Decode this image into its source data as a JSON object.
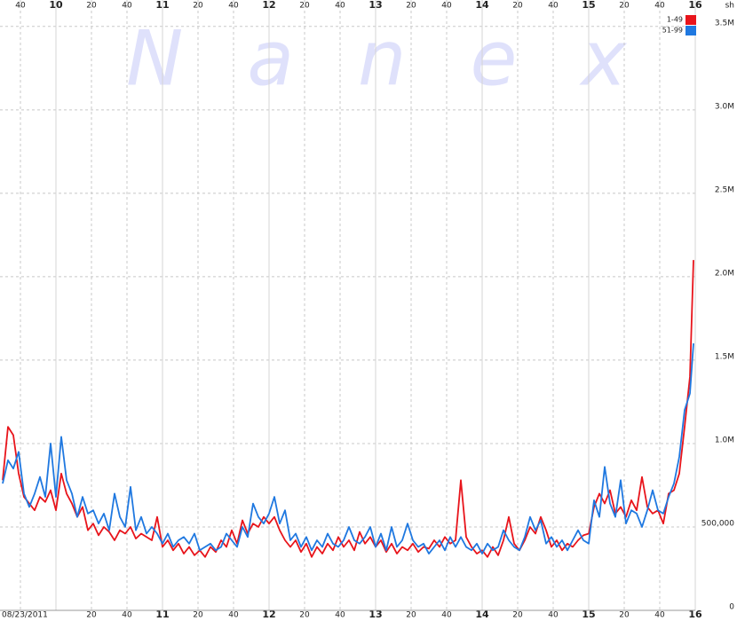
{
  "chart_data": {
    "type": "line",
    "watermark": "Nanex",
    "date": "08/23/2011",
    "unit": "sh",
    "x": [
      570,
      573,
      576,
      579,
      582,
      585,
      588,
      591,
      594,
      597,
      600,
      603,
      606,
      609,
      612,
      615,
      618,
      621,
      624,
      627,
      630,
      633,
      636,
      639,
      642,
      645,
      648,
      651,
      654,
      657,
      660,
      663,
      666,
      669,
      672,
      675,
      678,
      681,
      684,
      687,
      690,
      693,
      696,
      699,
      702,
      705,
      708,
      711,
      714,
      717,
      720,
      723,
      726,
      729,
      732,
      735,
      738,
      741,
      744,
      747,
      750,
      753,
      756,
      759,
      762,
      765,
      768,
      771,
      774,
      777,
      780,
      783,
      786,
      789,
      792,
      795,
      798,
      801,
      804,
      807,
      810,
      813,
      816,
      819,
      822,
      825,
      828,
      831,
      834,
      837,
      840,
      843,
      846,
      849,
      852,
      855,
      858,
      861,
      864,
      867,
      870,
      873,
      876,
      879,
      882,
      885,
      888,
      891,
      894,
      897,
      900,
      903,
      906,
      909,
      912,
      915,
      918,
      921,
      924,
      927,
      930,
      933,
      936,
      939,
      942,
      945,
      948,
      951,
      954,
      957,
      959
    ],
    "series": [
      {
        "name": "1-49",
        "color": "#e8141b",
        "values": [
          780000,
          1100000,
          1050000,
          820000,
          680000,
          640000,
          600000,
          680000,
          650000,
          720000,
          600000,
          820000,
          700000,
          640000,
          560000,
          620000,
          480000,
          520000,
          450000,
          500000,
          470000,
          420000,
          480000,
          460000,
          500000,
          430000,
          460000,
          440000,
          420000,
          560000,
          380000,
          420000,
          360000,
          400000,
          340000,
          380000,
          330000,
          360000,
          320000,
          380000,
          350000,
          420000,
          380000,
          480000,
          400000,
          540000,
          460000,
          520000,
          500000,
          560000,
          520000,
          560000,
          480000,
          420000,
          380000,
          420000,
          350000,
          400000,
          320000,
          380000,
          340000,
          400000,
          360000,
          440000,
          380000,
          420000,
          360000,
          470000,
          400000,
          440000,
          380000,
          420000,
          350000,
          400000,
          340000,
          380000,
          360000,
          400000,
          350000,
          380000,
          370000,
          420000,
          380000,
          440000,
          400000,
          420000,
          780000,
          440000,
          380000,
          340000,
          360000,
          320000,
          380000,
          330000,
          420000,
          560000,
          400000,
          360000,
          420000,
          500000,
          460000,
          560000,
          480000,
          380000,
          420000,
          360000,
          400000,
          380000,
          420000,
          450000,
          460000,
          620000,
          700000,
          640000,
          720000,
          580000,
          620000,
          560000,
          660000,
          600000,
          800000,
          620000,
          580000,
          600000,
          520000,
          700000,
          720000,
          820000,
          1100000,
          1400000,
          2100000
        ]
      },
      {
        "name": "51-99",
        "color": "#1f78e0",
        "values": [
          760000,
          900000,
          850000,
          950000,
          700000,
          620000,
          700000,
          800000,
          680000,
          1000000,
          680000,
          1040000,
          780000,
          700000,
          560000,
          680000,
          580000,
          600000,
          520000,
          580000,
          480000,
          700000,
          560000,
          500000,
          740000,
          480000,
          560000,
          460000,
          500000,
          460000,
          400000,
          460000,
          380000,
          420000,
          440000,
          400000,
          460000,
          360000,
          380000,
          400000,
          360000,
          380000,
          460000,
          420000,
          380000,
          500000,
          440000,
          640000,
          560000,
          520000,
          580000,
          680000,
          520000,
          600000,
          420000,
          460000,
          380000,
          440000,
          360000,
          420000,
          380000,
          460000,
          400000,
          380000,
          420000,
          500000,
          420000,
          400000,
          440000,
          500000,
          380000,
          460000,
          360000,
          500000,
          380000,
          420000,
          520000,
          420000,
          380000,
          400000,
          340000,
          380000,
          420000,
          360000,
          440000,
          380000,
          440000,
          380000,
          360000,
          400000,
          340000,
          400000,
          360000,
          380000,
          480000,
          420000,
          380000,
          360000,
          440000,
          560000,
          480000,
          540000,
          400000,
          440000,
          380000,
          420000,
          360000,
          420000,
          480000,
          420000,
          400000,
          660000,
          560000,
          860000,
          640000,
          560000,
          780000,
          520000,
          600000,
          580000,
          500000,
          600000,
          720000,
          600000,
          580000,
          680000,
          760000,
          920000,
          1200000,
          1300000,
          1600000
        ]
      }
    ],
    "xlim": [
      568.5,
      960
    ],
    "xticks": [
      {
        "value": 580,
        "label": "40"
      },
      {
        "value": 600,
        "label": "10"
      },
      {
        "value": 620,
        "label": "20"
      },
      {
        "value": 640,
        "label": "40"
      },
      {
        "value": 660,
        "label": "11"
      },
      {
        "value": 680,
        "label": "20"
      },
      {
        "value": 700,
        "label": "40"
      },
      {
        "value": 720,
        "label": "12"
      },
      {
        "value": 740,
        "label": "20"
      },
      {
        "value": 760,
        "label": "40"
      },
      {
        "value": 780,
        "label": "13"
      },
      {
        "value": 800,
        "label": "20"
      },
      {
        "value": 820,
        "label": "40"
      },
      {
        "value": 840,
        "label": "14"
      },
      {
        "value": 860,
        "label": "20"
      },
      {
        "value": 880,
        "label": "40"
      },
      {
        "value": 900,
        "label": "15"
      },
      {
        "value": 920,
        "label": "20"
      },
      {
        "value": 940,
        "label": "40"
      },
      {
        "value": 960,
        "label": "16"
      }
    ],
    "ylim": [
      0,
      3600000
    ],
    "yticks": [
      0,
      {
        "value": 500000,
        "label": "500,000"
      },
      {
        "value": 1000000,
        "label": "1.0M"
      },
      {
        "value": 1500000,
        "label": "1.5M"
      },
      {
        "value": 2000000,
        "label": "2.0M"
      },
      {
        "value": 2500000,
        "label": "2.5M"
      },
      {
        "value": 3000000,
        "label": "3.0M"
      },
      {
        "value": 3500000,
        "label": "3.5M"
      }
    ],
    "grid": true
  }
}
